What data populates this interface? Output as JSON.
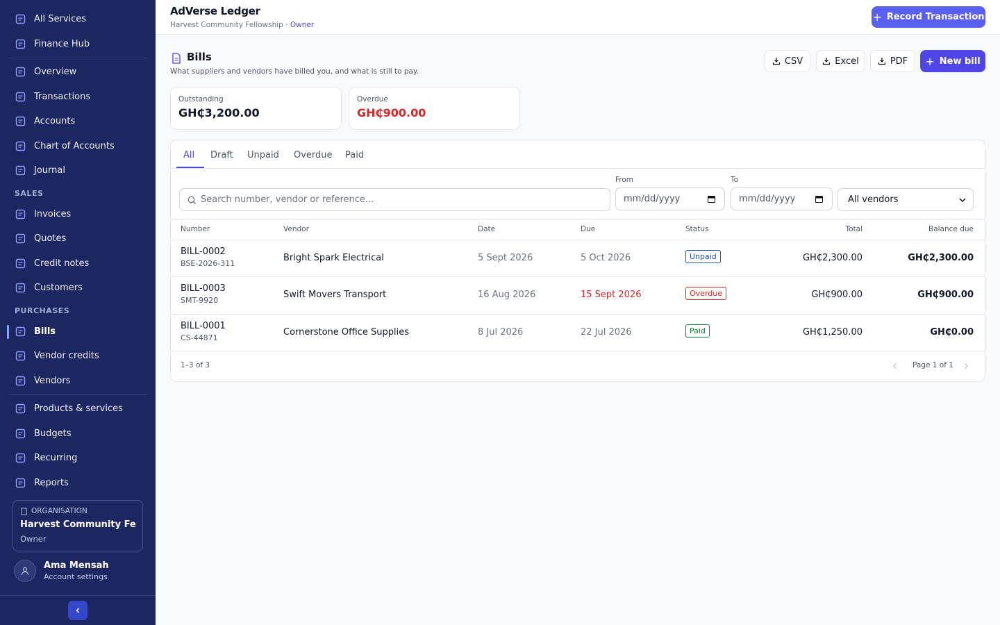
{
  "sidebar": {
    "top_items": [
      "All Services",
      "Finance Hub"
    ],
    "main_items": [
      "Overview",
      "Transactions",
      "Accounts",
      "Chart of Accounts",
      "Journal"
    ],
    "sales_heading": "SALES",
    "sales_items": [
      "Invoices",
      "Quotes",
      "Credit notes",
      "Customers"
    ],
    "purchases_heading": "PURCHASES",
    "purchases_items": [
      "Bills",
      "Vendor credits",
      "Vendors"
    ],
    "other_items": [
      "Products & services",
      "Budgets",
      "Recurring",
      "Reports"
    ],
    "organisation": {
      "label": "ORGANISATION",
      "name": "Harvest Community Fello...",
      "role": "Owner"
    },
    "user": {
      "name": "Ama Mensah",
      "link": "Account settings"
    }
  },
  "header": {
    "app": "AdVerse Ledger",
    "org": "Harvest Community Fellowship",
    "separator": "·",
    "role": "Owner",
    "action": "Record Transaction"
  },
  "page": {
    "title": "Bills",
    "subtitle": "What suppliers and vendors have billed you, and what is still to pay.",
    "exports": [
      "CSV",
      "Excel",
      "PDF"
    ],
    "new": "New bill"
  },
  "stats": [
    {
      "label": "Outstanding",
      "value": "GH₵3,200.00",
      "color": "#111827"
    },
    {
      "label": "Overdue",
      "value": "GH₵900.00",
      "color": "#dc2626"
    }
  ],
  "tabs": [
    "All",
    "Draft",
    "Unpaid",
    "Overdue",
    "Paid"
  ],
  "filters": {
    "search": "Search number, vendor or reference...",
    "from": "From",
    "to": "To",
    "date": "mm/dd/yyyy",
    "vendor": "All vendors"
  },
  "table": {
    "columns": [
      "Number",
      "Vendor",
      "Date",
      "Due",
      "Status",
      "Total",
      "Balance due"
    ],
    "rows": [
      {
        "number": "BILL-0002",
        "reference": "BSE-2026-311",
        "vendor": "Bright Spark Electrical",
        "date": "5 Sept 2026",
        "due": "5 Oct 2026",
        "due_color": "#6b7280",
        "status": "Unpaid",
        "status_color": "#1d4ed8",
        "total": "GH₵2,300.00",
        "balance": "GH₵2,300.00"
      },
      {
        "number": "BILL-0003",
        "reference": "SMT-9920",
        "vendor": "Swift Movers Transport",
        "date": "16 Aug 2026",
        "due": "15 Sept 2026",
        "due_color": "#dc2626",
        "status": "Overdue",
        "status_color": "#dc2626",
        "total": "GH₵900.00",
        "balance": "GH₵900.00"
      },
      {
        "number": "BILL-0001",
        "reference": "CS-44871",
        "vendor": "Cornerstone Office Supplies",
        "date": "8 Jul 2026",
        "due": "22 Jul 2026",
        "due_color": "#6b7280",
        "status": "Paid",
        "status_color": "#15803d",
        "total": "GH₵1,250.00",
        "balance": "GH₵0.00"
      }
    ]
  },
  "footer": {
    "range": "1–3 of 3",
    "page": "Page 1 of 1"
  }
}
